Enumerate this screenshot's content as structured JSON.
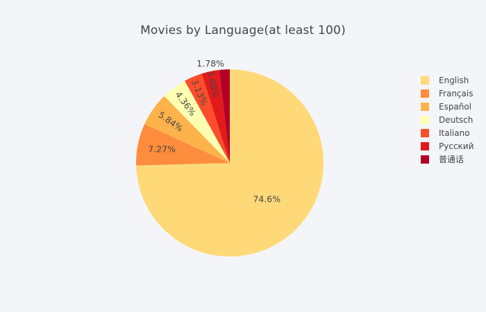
{
  "chart_data": {
    "type": "pie",
    "title": "Movies by Language(at least 100)",
    "categories": [
      "English",
      "Français",
      "Español",
      "Deutsch",
      "Italiano",
      "Русский",
      "普通话"
    ],
    "values": [
      74.6,
      7.27,
      5.84,
      4.36,
      3.13,
      3.08,
      1.78
    ],
    "value_labels": [
      "74.6%",
      "7.27%",
      "5.84%",
      "4.36%",
      "3.13%",
      "3.08%",
      "1.78%"
    ],
    "colors": [
      "#ffd978",
      "#fd8d3c",
      "#feb24c",
      "#ffffb2",
      "#fc4e2a",
      "#e31a1c",
      "#b10026"
    ],
    "direction": "clockwise",
    "start": "12 o'clock",
    "legend_position": "right"
  }
}
